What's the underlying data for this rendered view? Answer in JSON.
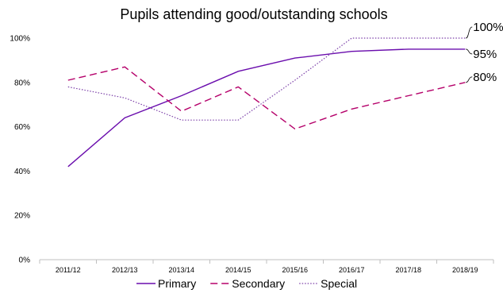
{
  "chart_data": {
    "type": "line",
    "title": "Pupils attending good/outstanding schools",
    "categories": [
      "2011/12",
      "2012/13",
      "2013/14",
      "2014/15",
      "2015/16",
      "2016/17",
      "2017/18",
      "2018/19"
    ],
    "y_ticks": [
      "0%",
      "20%",
      "40%",
      "60%",
      "80%",
      "100%"
    ],
    "ylim": [
      0,
      100
    ],
    "grid": false,
    "legend": "bottom",
    "series": [
      {
        "name": "Primary",
        "values": [
          42,
          64,
          74,
          85,
          91,
          94,
          95,
          95
        ],
        "color": "#6a0dad",
        "style": "solid",
        "end_label": "95%"
      },
      {
        "name": "Secondary",
        "values": [
          81,
          87,
          67,
          78,
          59,
          68,
          74,
          80
        ],
        "color": "#b5006a",
        "style": "dashed",
        "end_label": "80%"
      },
      {
        "name": "Special",
        "values": [
          78,
          73,
          63,
          63,
          81,
          100,
          100,
          100
        ],
        "color": "#7b3fa8",
        "style": "dotted",
        "end_label": "100%"
      }
    ]
  }
}
